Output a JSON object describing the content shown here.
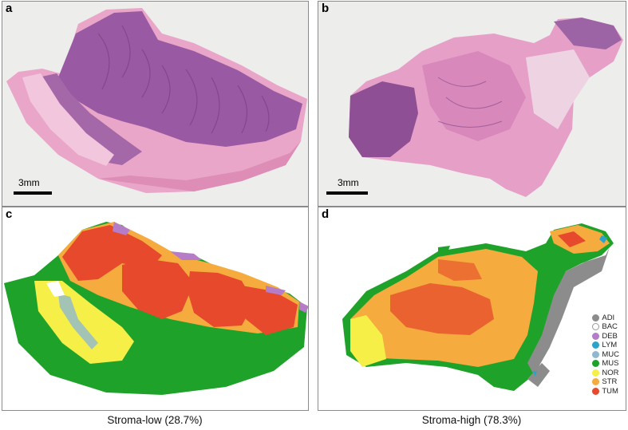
{
  "panels": {
    "a": {
      "label": "a",
      "scale_text": "3mm"
    },
    "b": {
      "label": "b",
      "scale_text": "3mm"
    },
    "c": {
      "label": "c",
      "caption": "Stroma-low (28.7%)"
    },
    "d": {
      "label": "d",
      "caption": "Stroma-high (78.3%)"
    }
  },
  "legend": [
    {
      "code": "ADI",
      "color": "#8c8c8c"
    },
    {
      "code": "BAC",
      "color": "#ffffff"
    },
    {
      "code": "DEB",
      "color": "#b57cc8"
    },
    {
      "code": "LYM",
      "color": "#2aa4c8"
    },
    {
      "code": "MUC",
      "color": "#8fb8d0"
    },
    {
      "code": "MUS",
      "color": "#1fa22a"
    },
    {
      "code": "NOR",
      "color": "#f6ef47"
    },
    {
      "code": "STR",
      "color": "#f5ab3e"
    },
    {
      "code": "TUM",
      "color": "#e6492c"
    }
  ],
  "colors": {
    "he_background": "#ededeb",
    "he_pink": "#e9a3c6",
    "he_purple": "#8d4f96"
  }
}
